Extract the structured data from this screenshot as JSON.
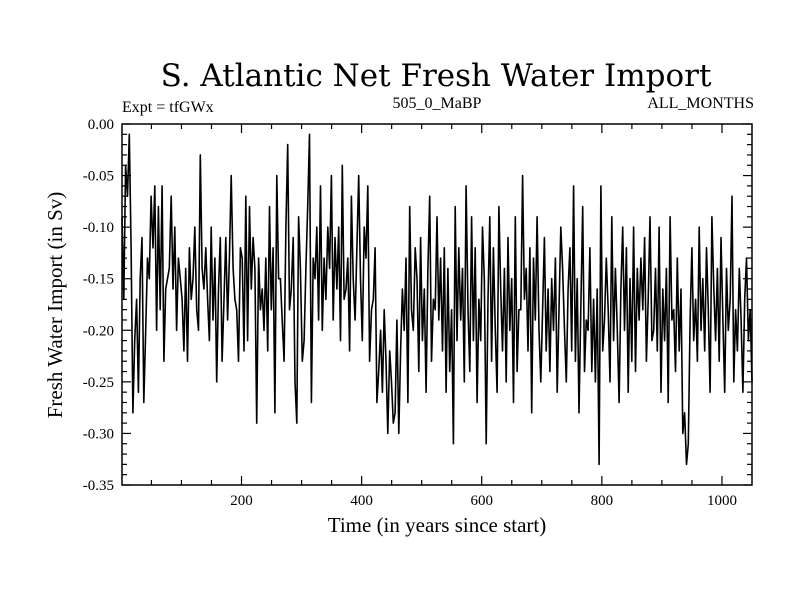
{
  "chart_data": {
    "type": "line",
    "title": "S. Atlantic Net Fresh Water Import",
    "subtitle_left": "Expt = tfGWx",
    "subtitle_center": "505_0_MaBP",
    "subtitle_right": "ALL_MONTHS",
    "xlabel": "Time (in years since start)",
    "ylabel": "Fresh Water Import (in Sv)",
    "xlim": [
      1,
      1050
    ],
    "ylim": [
      -0.35,
      0.0
    ],
    "x_ticks": [
      200,
      400,
      600,
      800,
      1000
    ],
    "x_tick_labels": [
      "200",
      "400",
      "600",
      "800",
      "1000"
    ],
    "y_ticks": [
      0.0,
      -0.05,
      -0.1,
      -0.15,
      -0.2,
      -0.25,
      -0.3,
      -0.35
    ],
    "y_tick_labels": [
      "0.00",
      "-0.05",
      "-0.10",
      "-0.15",
      "-0.20",
      "-0.25",
      "-0.30",
      "-0.35"
    ],
    "series": [
      {
        "name": "Fresh Water Import",
        "color": "#000000",
        "x_start": 1,
        "x_step": 3,
        "values": [
          -0.09,
          -0.17,
          -0.04,
          -0.07,
          -0.01,
          -0.12,
          -0.28,
          -0.21,
          -0.17,
          -0.26,
          -0.15,
          -0.11,
          -0.27,
          -0.2,
          -0.13,
          -0.15,
          -0.07,
          -0.12,
          -0.06,
          -0.2,
          -0.08,
          -0.18,
          -0.06,
          -0.23,
          -0.16,
          -0.15,
          -0.14,
          -0.07,
          -0.16,
          -0.1,
          -0.2,
          -0.13,
          -0.15,
          -0.17,
          -0.22,
          -0.14,
          -0.23,
          -0.12,
          -0.17,
          -0.15,
          -0.1,
          -0.18,
          -0.2,
          -0.03,
          -0.14,
          -0.16,
          -0.12,
          -0.17,
          -0.21,
          -0.1,
          -0.19,
          -0.13,
          -0.25,
          -0.16,
          -0.11,
          -0.23,
          -0.17,
          -0.11,
          -0.19,
          -0.13,
          -0.05,
          -0.14,
          -0.17,
          -0.18,
          -0.23,
          -0.12,
          -0.13,
          -0.22,
          -0.07,
          -0.21,
          -0.08,
          -0.16,
          -0.11,
          -0.14,
          -0.29,
          -0.13,
          -0.18,
          -0.16,
          -0.2,
          -0.13,
          -0.22,
          -0.08,
          -0.18,
          -0.12,
          -0.28,
          -0.05,
          -0.15,
          -0.15,
          -0.19,
          -0.23,
          -0.1,
          -0.02,
          -0.18,
          -0.16,
          -0.11,
          -0.25,
          -0.29,
          -0.09,
          -0.14,
          -0.23,
          -0.21,
          -0.14,
          -0.08,
          -0.01,
          -0.27,
          -0.13,
          -0.15,
          -0.1,
          -0.19,
          -0.06,
          -0.2,
          -0.13,
          -0.17,
          -0.1,
          -0.14,
          -0.05,
          -0.19,
          -0.11,
          -0.16,
          -0.1,
          -0.21,
          -0.04,
          -0.17,
          -0.16,
          -0.13,
          -0.22,
          -0.07,
          -0.15,
          -0.19,
          -0.12,
          -0.05,
          -0.15,
          -0.21,
          -0.1,
          -0.13,
          -0.06,
          -0.23,
          -0.18,
          -0.17,
          -0.12,
          -0.27,
          -0.24,
          -0.2,
          -0.26,
          -0.18,
          -0.23,
          -0.3,
          -0.22,
          -0.25,
          -0.29,
          -0.28,
          -0.19,
          -0.3,
          -0.22,
          -0.16,
          -0.2,
          -0.13,
          -0.27,
          -0.08,
          -0.18,
          -0.2,
          -0.12,
          -0.15,
          -0.24,
          -0.11,
          -0.21,
          -0.16,
          -0.26,
          -0.14,
          -0.07,
          -0.23,
          -0.17,
          -0.18,
          -0.09,
          -0.19,
          -0.13,
          -0.22,
          -0.12,
          -0.26,
          -0.14,
          -0.24,
          -0.18,
          -0.31,
          -0.08,
          -0.21,
          -0.12,
          -0.19,
          -0.14,
          -0.25,
          -0.06,
          -0.18,
          -0.24,
          -0.09,
          -0.21,
          -0.12,
          -0.27,
          -0.17,
          -0.21,
          -0.1,
          -0.15,
          -0.31,
          -0.17,
          -0.09,
          -0.23,
          -0.12,
          -0.2,
          -0.26,
          -0.08,
          -0.16,
          -0.22,
          -0.14,
          -0.25,
          -0.11,
          -0.2,
          -0.15,
          -0.27,
          -0.09,
          -0.24,
          -0.18,
          -0.18,
          -0.05,
          -0.17,
          -0.14,
          -0.22,
          -0.12,
          -0.28,
          -0.13,
          -0.19,
          -0.09,
          -0.2,
          -0.25,
          -0.18,
          -0.11,
          -0.22,
          -0.16,
          -0.24,
          -0.15,
          -0.2,
          -0.13,
          -0.26,
          -0.18,
          -0.1,
          -0.14,
          -0.2,
          -0.25,
          -0.16,
          -0.12,
          -0.22,
          -0.06,
          -0.23,
          -0.15,
          -0.28,
          -0.18,
          -0.08,
          -0.24,
          -0.19,
          -0.2,
          -0.12,
          -0.24,
          -0.17,
          -0.25,
          -0.16,
          -0.33,
          -0.06,
          -0.22,
          -0.19,
          -0.13,
          -0.18,
          -0.25,
          -0.09,
          -0.21,
          -0.14,
          -0.2,
          -0.27,
          -0.16,
          -0.1,
          -0.2,
          -0.12,
          -0.26,
          -0.15,
          -0.23,
          -0.1,
          -0.24,
          -0.14,
          -0.19,
          -0.13,
          -0.18,
          -0.11,
          -0.23,
          -0.17,
          -0.09,
          -0.21,
          -0.2,
          -0.14,
          -0.22,
          -0.1,
          -0.26,
          -0.16,
          -0.21,
          -0.14,
          -0.27,
          -0.09,
          -0.19,
          -0.18,
          -0.24,
          -0.13,
          -0.22,
          -0.16,
          -0.3,
          -0.28,
          -0.33,
          -0.31,
          -0.19,
          -0.12,
          -0.21,
          -0.17,
          -0.23,
          -0.1,
          -0.2,
          -0.15,
          -0.22,
          -0.12,
          -0.18,
          -0.26,
          -0.09,
          -0.16,
          -0.21,
          -0.14,
          -0.23,
          -0.11,
          -0.19,
          -0.26,
          -0.14,
          -0.2,
          -0.17,
          -0.07,
          -0.25,
          -0.18,
          -0.22,
          -0.14,
          -0.19,
          -0.26,
          -0.17,
          -0.13,
          -0.21,
          -0.18,
          -0.25
        ]
      }
    ],
    "grid": false
  }
}
